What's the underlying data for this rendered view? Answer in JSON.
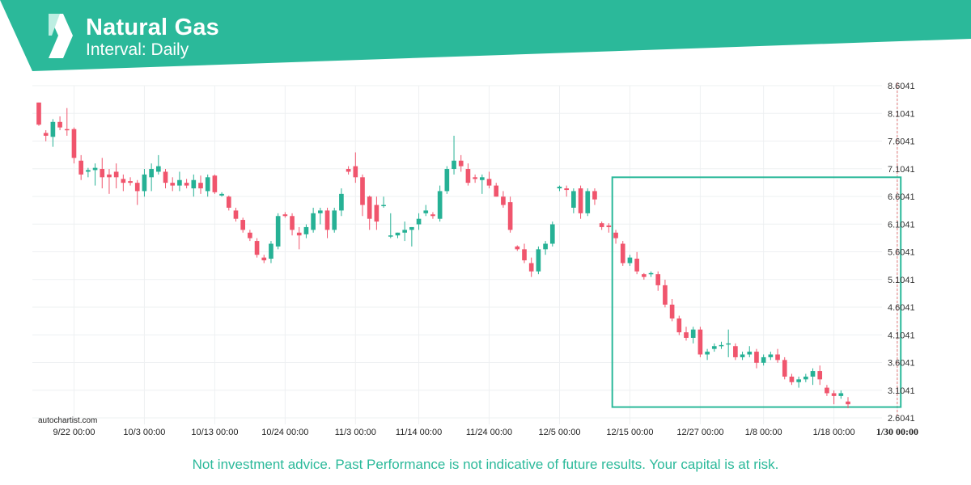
{
  "header": {
    "title": "Natural Gas",
    "subtitle": "Interval: Daily"
  },
  "watermark": "autochartist.com",
  "disclaimer": "Not investment advice. Past Performance is not indicative of future results. Your capital is at risk.",
  "colors": {
    "brand": "#2bb99a",
    "brand_dark": "#1f9e82",
    "bullish": "#26b195",
    "bearish": "#f0556d",
    "grid": "#eef0f2",
    "disclaimer_text": "#2bb99a"
  },
  "chart_data": {
    "type": "candlestick",
    "y_ticks": [
      "8.6041",
      "8.1041",
      "7.6041",
      "7.1041",
      "6.6041",
      "6.1041",
      "5.6041",
      "5.1041",
      "4.6041",
      "4.1041",
      "3.6041",
      "3.1041",
      "2.6041"
    ],
    "ylim": [
      2.6041,
      8.6041
    ],
    "x_ticks": [
      {
        "label": "9/22 00:00",
        "index": 5
      },
      {
        "label": "10/3 00:00",
        "index": 15
      },
      {
        "label": "10/13 00:00",
        "index": 25
      },
      {
        "label": "10/24 00:00",
        "index": 35
      },
      {
        "label": "11/3 00:00",
        "index": 45
      },
      {
        "label": "11/14 00:00",
        "index": 54
      },
      {
        "label": "11/24 00:00",
        "index": 64
      },
      {
        "label": "12/5 00:00",
        "index": 74
      },
      {
        "label": "12/15 00:00",
        "index": 84
      },
      {
        "label": "12/27 00:00",
        "index": 94
      },
      {
        "label": "1/8 00:00",
        "index": 103
      },
      {
        "label": "1/18 00:00",
        "index": 113
      },
      {
        "label": "1/30 00:00",
        "index": 122,
        "bold": true
      }
    ],
    "candles": [
      [
        8.3,
        8.3,
        7.88,
        7.9
      ],
      [
        7.75,
        7.8,
        7.6,
        7.7
      ],
      [
        7.68,
        8.0,
        7.5,
        7.95
      ],
      [
        7.95,
        8.05,
        7.8,
        7.85
      ],
      [
        7.82,
        8.2,
        7.7,
        7.8
      ],
      [
        7.82,
        7.85,
        7.2,
        7.3
      ],
      [
        7.25,
        7.35,
        6.9,
        7.0
      ],
      [
        7.05,
        7.12,
        6.95,
        7.08
      ],
      [
        7.08,
        7.2,
        6.8,
        7.12
      ],
      [
        7.1,
        7.3,
        6.75,
        6.95
      ],
      [
        7.0,
        7.1,
        6.65,
        6.95
      ],
      [
        7.05,
        7.2,
        6.75,
        6.95
      ],
      [
        6.92,
        7.0,
        6.7,
        6.85
      ],
      [
        6.88,
        6.95,
        6.8,
        6.85
      ],
      [
        6.85,
        6.9,
        6.45,
        6.7
      ],
      [
        6.7,
        7.1,
        6.6,
        7.0
      ],
      [
        6.95,
        7.2,
        6.7,
        7.1
      ],
      [
        7.05,
        7.35,
        7.0,
        7.15
      ],
      [
        7.05,
        7.1,
        6.75,
        6.85
      ],
      [
        6.85,
        6.95,
        6.7,
        6.8
      ],
      [
        6.8,
        7.05,
        6.7,
        6.9
      ],
      [
        6.85,
        6.92,
        6.75,
        6.8
      ],
      [
        6.75,
        7.0,
        6.6,
        6.9
      ],
      [
        6.85,
        6.98,
        6.65,
        6.75
      ],
      [
        6.7,
        7.0,
        6.6,
        6.95
      ],
      [
        6.98,
        7.0,
        6.65,
        6.68
      ],
      [
        6.62,
        6.68,
        6.6,
        6.65
      ],
      [
        6.6,
        6.62,
        6.35,
        6.4
      ],
      [
        6.35,
        6.4,
        6.15,
        6.2
      ],
      [
        6.18,
        6.22,
        5.95,
        6.0
      ],
      [
        5.95,
        6.0,
        5.8,
        5.85
      ],
      [
        5.8,
        5.85,
        5.5,
        5.55
      ],
      [
        5.5,
        5.55,
        5.4,
        5.45
      ],
      [
        5.48,
        5.8,
        5.4,
        5.75
      ],
      [
        5.7,
        6.3,
        5.65,
        6.25
      ],
      [
        6.28,
        6.32,
        6.22,
        6.25
      ],
      [
        6.25,
        6.3,
        5.9,
        6.0
      ],
      [
        5.95,
        6.05,
        5.65,
        5.9
      ],
      [
        5.92,
        6.1,
        5.85,
        6.05
      ],
      [
        6.0,
        6.4,
        5.95,
        6.3
      ],
      [
        6.3,
        6.4,
        6.1,
        6.35
      ],
      [
        6.35,
        6.4,
        5.85,
        6.0
      ],
      [
        6.0,
        6.4,
        5.95,
        6.35
      ],
      [
        6.35,
        6.75,
        6.25,
        6.65
      ],
      [
        7.1,
        7.15,
        7.0,
        7.05
      ],
      [
        7.15,
        7.4,
        6.85,
        6.95
      ],
      [
        6.95,
        7.0,
        6.25,
        6.45
      ],
      [
        6.6,
        6.62,
        6.0,
        6.2
      ],
      [
        6.45,
        6.6,
        6.0,
        6.15
      ],
      [
        6.45,
        6.6,
        6.4,
        6.45
      ],
      [
        5.88,
        6.3,
        5.85,
        5.9
      ],
      [
        5.9,
        5.95,
        5.85,
        5.95
      ],
      [
        5.95,
        6.15,
        5.8,
        6.0
      ],
      [
        6.0,
        6.05,
        5.7,
        6.05
      ],
      [
        6.1,
        6.3,
        6.0,
        6.2
      ],
      [
        6.3,
        6.45,
        6.25,
        6.35
      ],
      [
        6.28,
        6.32,
        6.2,
        6.25
      ],
      [
        6.2,
        6.8,
        6.15,
        6.7
      ],
      [
        6.7,
        7.15,
        6.65,
        7.1
      ],
      [
        7.1,
        7.7,
        7.0,
        7.25
      ],
      [
        7.25,
        7.35,
        7.05,
        7.15
      ],
      [
        7.1,
        7.2,
        6.8,
        6.85
      ],
      [
        6.95,
        7.0,
        6.85,
        6.92
      ],
      [
        6.9,
        7.0,
        6.65,
        6.95
      ],
      [
        6.92,
        7.05,
        6.75,
        6.8
      ],
      [
        6.8,
        6.85,
        6.6,
        6.6
      ],
      [
        6.6,
        6.7,
        6.4,
        6.45
      ],
      [
        6.5,
        6.6,
        5.95,
        6.0
      ],
      [
        5.7,
        5.72,
        5.62,
        5.65
      ],
      [
        5.65,
        5.75,
        5.4,
        5.45
      ],
      [
        5.4,
        5.5,
        5.15,
        5.25
      ],
      [
        5.25,
        5.7,
        5.2,
        5.65
      ],
      [
        5.65,
        5.8,
        5.55,
        5.75
      ],
      [
        5.75,
        6.15,
        5.7,
        6.1
      ],
      [
        6.75,
        6.8,
        6.7,
        6.78
      ],
      [
        6.75,
        6.8,
        6.6,
        6.72
      ],
      [
        6.4,
        6.75,
        6.3,
        6.7
      ],
      [
        6.75,
        6.8,
        6.2,
        6.3
      ],
      [
        6.3,
        6.75,
        6.25,
        6.7
      ],
      [
        6.7,
        6.75,
        6.45,
        6.55
      ],
      [
        6.12,
        6.15,
        6.0,
        6.05
      ],
      [
        6.08,
        6.12,
        5.95,
        6.05
      ],
      [
        5.95,
        6.0,
        5.75,
        5.85
      ],
      [
        5.75,
        5.8,
        5.35,
        5.4
      ],
      [
        5.4,
        5.55,
        5.35,
        5.5
      ],
      [
        5.48,
        5.6,
        5.2,
        5.25
      ],
      [
        5.2,
        5.22,
        5.1,
        5.15
      ],
      [
        5.2,
        5.25,
        5.15,
        5.22
      ],
      [
        5.2,
        5.25,
        4.9,
        5.0
      ],
      [
        5.0,
        5.1,
        4.6,
        4.65
      ],
      [
        4.65,
        4.75,
        4.35,
        4.4
      ],
      [
        4.4,
        4.45,
        4.1,
        4.15
      ],
      [
        4.15,
        4.25,
        4.0,
        4.05
      ],
      [
        4.05,
        4.25,
        3.95,
        4.2
      ],
      [
        4.2,
        4.25,
        3.7,
        3.75
      ],
      [
        3.75,
        3.85,
        3.65,
        3.8
      ],
      [
        3.85,
        3.95,
        3.8,
        3.9
      ],
      [
        3.9,
        3.98,
        3.85,
        3.92
      ],
      [
        3.95,
        4.2,
        3.7,
        3.95
      ],
      [
        3.9,
        3.95,
        3.65,
        3.7
      ],
      [
        3.7,
        3.8,
        3.65,
        3.75
      ],
      [
        3.75,
        3.9,
        3.7,
        3.8
      ],
      [
        3.8,
        3.85,
        3.5,
        3.6
      ],
      [
        3.6,
        3.75,
        3.55,
        3.7
      ],
      [
        3.7,
        3.8,
        3.65,
        3.75
      ],
      [
        3.75,
        3.85,
        3.6,
        3.65
      ],
      [
        3.65,
        3.7,
        3.3,
        3.35
      ],
      [
        3.35,
        3.4,
        3.2,
        3.25
      ],
      [
        3.25,
        3.35,
        3.15,
        3.3
      ],
      [
        3.3,
        3.4,
        3.25,
        3.35
      ],
      [
        3.35,
        3.5,
        3.2,
        3.45
      ],
      [
        3.45,
        3.55,
        3.2,
        3.3
      ],
      [
        3.15,
        3.2,
        3.0,
        3.05
      ],
      [
        3.05,
        3.1,
        2.85,
        3.0
      ],
      [
        3.0,
        3.1,
        2.95,
        3.05
      ],
      [
        2.9,
        2.98,
        2.78,
        2.85
      ]
    ],
    "candle_format": [
      "open",
      "high",
      "low",
      "close"
    ],
    "pattern_box": {
      "start_index": 82,
      "end_index": 122,
      "high": 6.95,
      "low": 2.8
    },
    "current_marker_index": 122
  }
}
